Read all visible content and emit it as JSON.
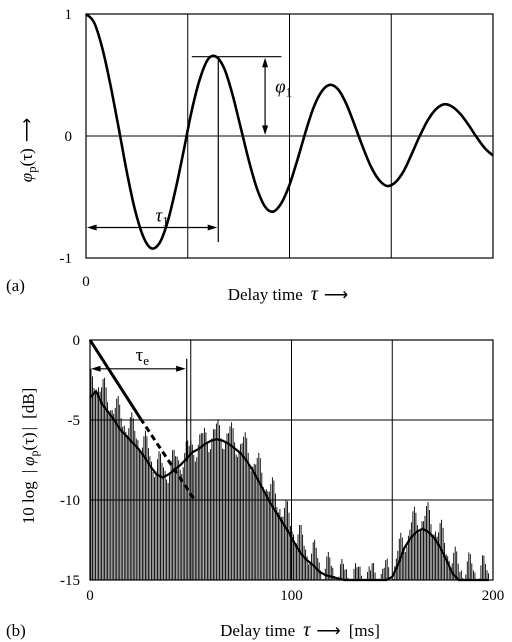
{
  "chart_data": [
    {
      "panel": "(a)",
      "type": "line",
      "ylabel_main": "φ",
      "ylabel_sub": "p",
      "ylabel_args": "(τ)",
      "ylabel_arrow": "⟶",
      "xlabel": "Delay time",
      "xlabel_symbol": "τ",
      "xlabel_arrow": "⟶",
      "ylim": [
        -1,
        1
      ],
      "xlim": [
        0,
        200
      ],
      "grid": true,
      "y_ticks": [
        {
          "value": 1,
          "label": "1"
        },
        {
          "value": 0,
          "label": "0"
        },
        {
          "value": -1,
          "label": "-1"
        }
      ],
      "x_ticks": [
        {
          "value": 0,
          "label": "0"
        }
      ],
      "x_gridlines": [
        50,
        100,
        150
      ],
      "series": [
        {
          "x": [
            0,
            4,
            8,
            12,
            16,
            20,
            24,
            28,
            32,
            36,
            40,
            44,
            48,
            52,
            56,
            60,
            64,
            68,
            72,
            76,
            80,
            84,
            88,
            92,
            96,
            100,
            104,
            108,
            112,
            116,
            120,
            124,
            128,
            132,
            136,
            140,
            144,
            148,
            152,
            156,
            160,
            164,
            168,
            172,
            176,
            180,
            184,
            188,
            192,
            196,
            200
          ],
          "y": [
            1.0,
            0.93,
            0.72,
            0.42,
            0.07,
            -0.29,
            -0.6,
            -0.82,
            -0.92,
            -0.88,
            -0.71,
            -0.44,
            -0.12,
            0.21,
            0.47,
            0.63,
            0.65,
            0.55,
            0.34,
            0.07,
            -0.2,
            -0.43,
            -0.58,
            -0.62,
            -0.55,
            -0.4,
            -0.19,
            0.04,
            0.24,
            0.37,
            0.42,
            0.38,
            0.26,
            0.09,
            -0.09,
            -0.25,
            -0.36,
            -0.41,
            -0.38,
            -0.29,
            -0.15,
            0.0,
            0.13,
            0.22,
            0.26,
            0.24,
            0.18,
            0.09,
            -0.01,
            -0.1,
            -0.16
          ]
        }
      ],
      "annotations": {
        "tau1_label": "τ",
        "tau1_sub": "1",
        "tau1_range": [
          0,
          65
        ],
        "tau1_y": -0.75,
        "phi1_label": "φ",
        "phi1_sub": "1",
        "phi1_x": 88,
        "phi1_range": [
          0,
          0.65
        ]
      }
    },
    {
      "panel": "(b)",
      "type": "line",
      "ylabel": "10 log",
      "ylabel_main": "φ",
      "ylabel_sub": "p",
      "ylabel_args": "(τ)",
      "ylabel_unit": "[dB]",
      "xlabel": "Delay time",
      "xlabel_symbol": "τ",
      "xlabel_arrow": "⟶",
      "xlabel_unit": "[ms]",
      "ylim": [
        -15,
        0
      ],
      "xlim": [
        0,
        200
      ],
      "grid": true,
      "y_ticks": [
        {
          "value": 0,
          "label": "0"
        },
        {
          "value": -5,
          "label": "-5"
        },
        {
          "value": -10,
          "label": "-10"
        },
        {
          "value": -15,
          "label": "-15"
        }
      ],
      "x_ticks": [
        {
          "value": 0,
          "label": "0"
        },
        {
          "value": 100,
          "label": "100"
        },
        {
          "value": 200,
          "label": "200"
        }
      ],
      "x_gridlines": [
        50,
        100,
        150
      ],
      "envelope": {
        "x": [
          0,
          3,
          6,
          9,
          12,
          15,
          18,
          21,
          24,
          27,
          30,
          33,
          36,
          39,
          42,
          45,
          48,
          51,
          54,
          57,
          60,
          63,
          66,
          69,
          72,
          75,
          78,
          81,
          84,
          87,
          90,
          93,
          96,
          99,
          102,
          105,
          108,
          111,
          114,
          117,
          120,
          123,
          126,
          129,
          132,
          135,
          138,
          141,
          144,
          147,
          150,
          153,
          156,
          159,
          162,
          165,
          168,
          171,
          174,
          177,
          180,
          183,
          186,
          189,
          192,
          195,
          198
        ],
        "y": [
          -3.6,
          -3.2,
          -4.0,
          -4.5,
          -5.0,
          -5.6,
          -6.0,
          -6.4,
          -6.8,
          -7.3,
          -7.9,
          -8.4,
          -8.6,
          -8.4,
          -8.1,
          -7.8,
          -7.4,
          -7.0,
          -6.8,
          -6.5,
          -6.3,
          -6.2,
          -6.3,
          -6.5,
          -6.8,
          -7.1,
          -7.6,
          -8.2,
          -8.9,
          -9.6,
          -10.3,
          -10.9,
          -11.5,
          -12.1,
          -12.8,
          -13.4,
          -13.8,
          -14.1,
          -14.5,
          -14.7,
          -14.8,
          -14.9,
          -15.0,
          -15.0,
          -15.0,
          -15.0,
          -15.0,
          -15.0,
          -15.0,
          -15.0,
          -14.8,
          -14.0,
          -13.0,
          -12.4,
          -12.0,
          -11.8,
          -12.0,
          -12.4,
          -13.0,
          -13.8,
          -14.6,
          -15.0,
          -15.0,
          -15.0,
          -15.0,
          -15.0,
          -15.0
        ]
      },
      "decay_solid": {
        "x": [
          0,
          25
        ],
        "y": [
          0,
          -4.9
        ]
      },
      "decay_dashed": {
        "x": [
          25,
          52
        ],
        "y": [
          -4.9,
          -10.0
        ]
      },
      "annotations": {
        "taue_label": "τ",
        "taue_sub": "e",
        "taue_range": [
          0,
          48
        ],
        "taue_y": -1.8,
        "marker_x": 50
      }
    }
  ]
}
